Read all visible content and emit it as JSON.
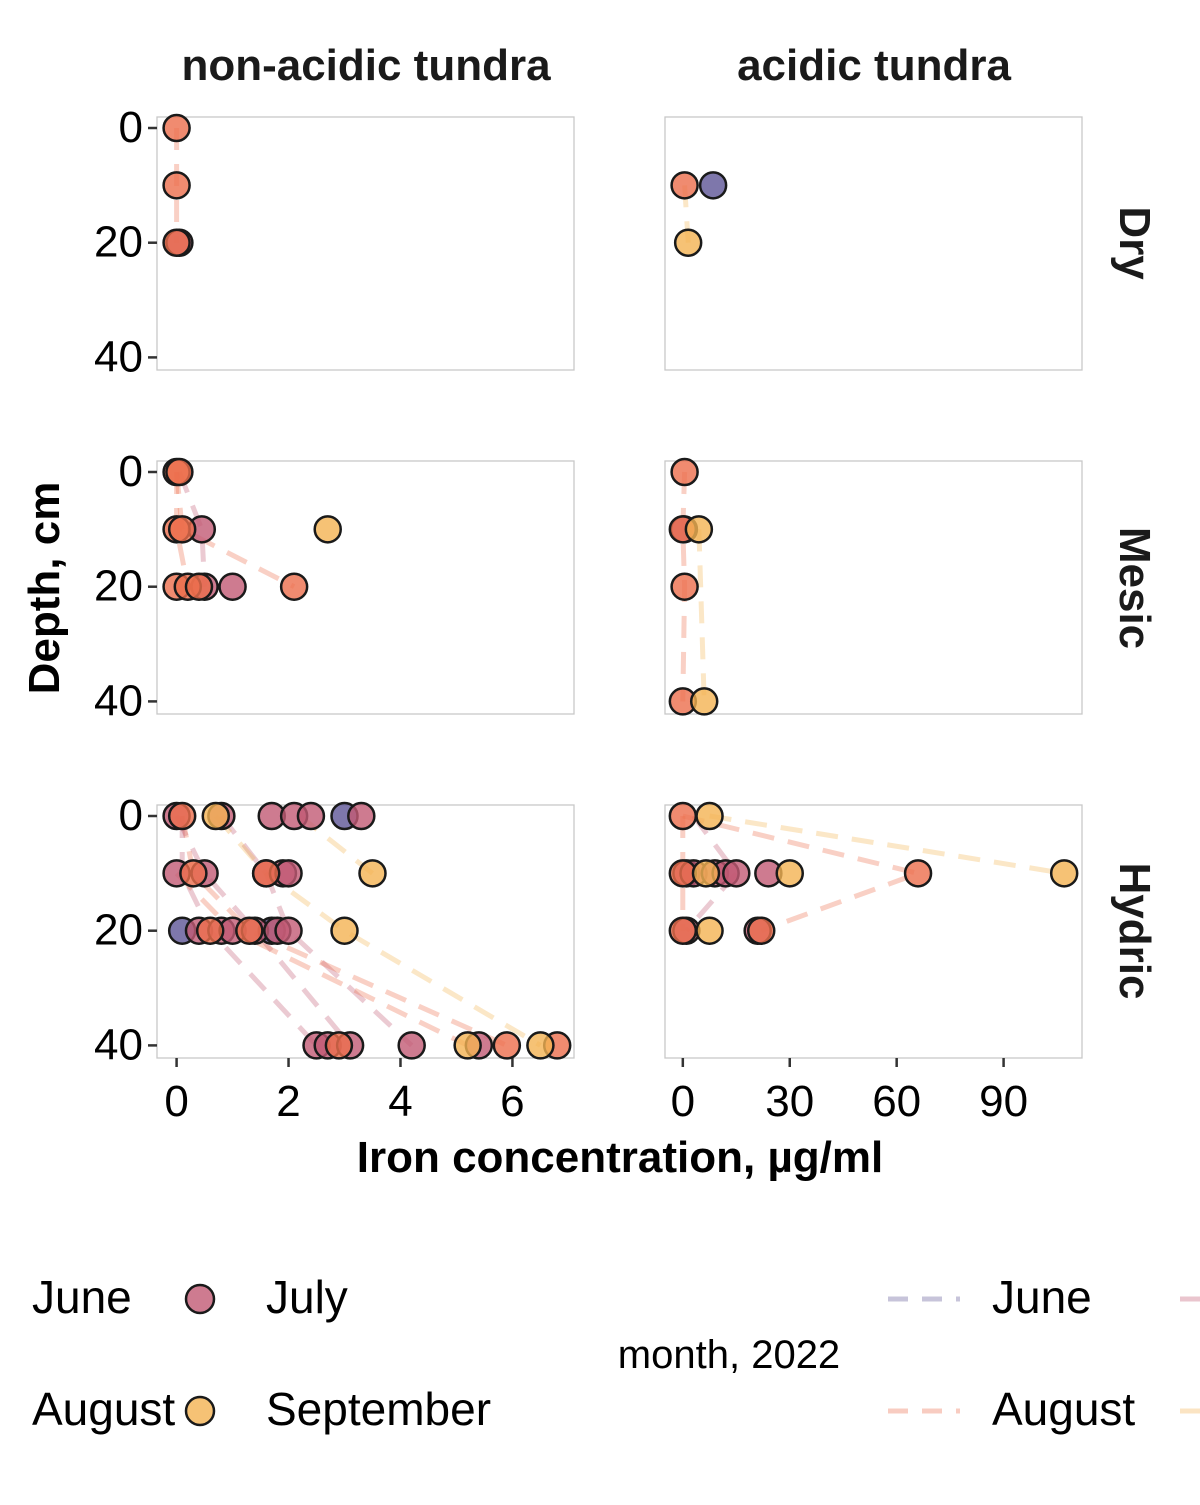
{
  "colors": {
    "June": "#5e5596",
    "July": "#c25a74",
    "August": "#ec6e4c",
    "September": "#f4b352",
    "panel_border": "#c8c8c8"
  },
  "chart_data": {
    "type": "scatter",
    "facet_columns": [
      "non-acidic tundra",
      "acidic tundra"
    ],
    "facet_rows": [
      "Dry",
      "Mesic",
      "Hydric"
    ],
    "xlabel": "Iron concentration, µg/ml",
    "ylabel": "Depth, cm",
    "y_ticks": [
      0,
      20,
      40
    ],
    "y_reversed": true,
    "ylim": [
      -4,
      40
    ],
    "x_axes": [
      {
        "column": "non-acidic tundra",
        "xlim": [
          -0.35,
          7.1
        ],
        "ticks": [
          0,
          2,
          4,
          6
        ]
      },
      {
        "column": "acidic tundra",
        "xlim": [
          -5,
          112
        ],
        "ticks": [
          0,
          30,
          60,
          90
        ]
      }
    ],
    "grid": false,
    "legend_position": "bottom",
    "legend_points": [
      "June",
      "July",
      "August",
      "September"
    ],
    "legend_lines": [
      "June",
      "July",
      "August",
      "September"
    ],
    "legend_title": "month, 2022",
    "series": [
      {
        "name": "June",
        "points": [
          {
            "col": 1,
            "row": 0,
            "x": 8.5,
            "y": 10
          },
          {
            "col": 0,
            "row": 2,
            "x": 3.0,
            "y": 0
          },
          {
            "col": 0,
            "row": 2,
            "x": 0.1,
            "y": 20
          },
          {
            "col": 0,
            "row": 2,
            "x": 1.7,
            "y": 20
          }
        ]
      },
      {
        "name": "July",
        "points": [
          {
            "col": 0,
            "row": 0,
            "x": 0.05,
            "y": 20
          },
          {
            "col": 0,
            "row": 1,
            "x": 0.45,
            "y": 10
          },
          {
            "col": 0,
            "row": 1,
            "x": 1.0,
            "y": 20
          },
          {
            "col": 0,
            "row": 1,
            "x": 0.5,
            "y": 20
          },
          {
            "col": 1,
            "row": 1,
            "x": 0.3,
            "y": 10
          },
          {
            "col": 0,
            "row": 2,
            "x": 0.0,
            "y": 0
          },
          {
            "col": 0,
            "row": 2,
            "x": 0.8,
            "y": 0
          },
          {
            "col": 0,
            "row": 2,
            "x": 1.7,
            "y": 0
          },
          {
            "col": 0,
            "row": 2,
            "x": 2.1,
            "y": 0
          },
          {
            "col": 0,
            "row": 2,
            "x": 2.4,
            "y": 0
          },
          {
            "col": 0,
            "row": 2,
            "x": 3.3,
            "y": 0
          },
          {
            "col": 0,
            "row": 2,
            "x": 0.0,
            "y": 10
          },
          {
            "col": 0,
            "row": 2,
            "x": 0.5,
            "y": 10
          },
          {
            "col": 0,
            "row": 2,
            "x": 1.6,
            "y": 10
          },
          {
            "col": 0,
            "row": 2,
            "x": 1.9,
            "y": 10
          },
          {
            "col": 0,
            "row": 2,
            "x": 2.0,
            "y": 10
          },
          {
            "col": 0,
            "row": 2,
            "x": 0.4,
            "y": 20
          },
          {
            "col": 0,
            "row": 2,
            "x": 0.8,
            "y": 20
          },
          {
            "col": 0,
            "row": 2,
            "x": 1.0,
            "y": 20
          },
          {
            "col": 0,
            "row": 2,
            "x": 1.4,
            "y": 20
          },
          {
            "col": 0,
            "row": 2,
            "x": 1.8,
            "y": 20
          },
          {
            "col": 0,
            "row": 2,
            "x": 2.0,
            "y": 20
          },
          {
            "col": 0,
            "row": 2,
            "x": 2.5,
            "y": 40
          },
          {
            "col": 0,
            "row": 2,
            "x": 2.7,
            "y": 40
          },
          {
            "col": 0,
            "row": 2,
            "x": 3.1,
            "y": 40
          },
          {
            "col": 0,
            "row": 2,
            "x": 4.2,
            "y": 40
          },
          {
            "col": 0,
            "row": 2,
            "x": 5.4,
            "y": 40
          },
          {
            "col": 1,
            "row": 2,
            "x": 1.0,
            "y": 10
          },
          {
            "col": 1,
            "row": 2,
            "x": 3.0,
            "y": 10
          },
          {
            "col": 1,
            "row": 2,
            "x": 9.0,
            "y": 10
          },
          {
            "col": 1,
            "row": 2,
            "x": 12.0,
            "y": 10
          },
          {
            "col": 1,
            "row": 2,
            "x": 15.0,
            "y": 10
          },
          {
            "col": 1,
            "row": 2,
            "x": 24.0,
            "y": 10
          },
          {
            "col": 1,
            "row": 2,
            "x": 1.0,
            "y": 20
          },
          {
            "col": 1,
            "row": 2,
            "x": 21.0,
            "y": 20
          }
        ]
      },
      {
        "name": "August",
        "points": [
          {
            "col": 0,
            "row": 0,
            "x": 0.0,
            "y": 0
          },
          {
            "col": 0,
            "row": 0,
            "x": 0.0,
            "y": 10
          },
          {
            "col": 0,
            "row": 0,
            "x": 0.0,
            "y": 20
          },
          {
            "col": 1,
            "row": 0,
            "x": 0.5,
            "y": 10
          },
          {
            "col": 0,
            "row": 1,
            "x": 0.0,
            "y": 0
          },
          {
            "col": 0,
            "row": 1,
            "x": 0.05,
            "y": 0
          },
          {
            "col": 0,
            "row": 1,
            "x": 0.0,
            "y": 10
          },
          {
            "col": 0,
            "row": 1,
            "x": 0.1,
            "y": 10
          },
          {
            "col": 0,
            "row": 1,
            "x": 0.0,
            "y": 20
          },
          {
            "col": 0,
            "row": 1,
            "x": 0.2,
            "y": 20
          },
          {
            "col": 0,
            "row": 1,
            "x": 0.4,
            "y": 20
          },
          {
            "col": 0,
            "row": 1,
            "x": 2.1,
            "y": 20
          },
          {
            "col": 1,
            "row": 1,
            "x": 0.5,
            "y": 0
          },
          {
            "col": 1,
            "row": 1,
            "x": 0.0,
            "y": 10
          },
          {
            "col": 1,
            "row": 1,
            "x": 0.5,
            "y": 20
          },
          {
            "col": 1,
            "row": 1,
            "x": 0.0,
            "y": 40
          },
          {
            "col": 0,
            "row": 2,
            "x": 0.1,
            "y": 0
          },
          {
            "col": 0,
            "row": 2,
            "x": 0.3,
            "y": 10
          },
          {
            "col": 0,
            "row": 2,
            "x": 1.6,
            "y": 10
          },
          {
            "col": 0,
            "row": 2,
            "x": 0.6,
            "y": 20
          },
          {
            "col": 0,
            "row": 2,
            "x": 1.3,
            "y": 20
          },
          {
            "col": 0,
            "row": 2,
            "x": 2.9,
            "y": 40
          },
          {
            "col": 0,
            "row": 2,
            "x": 5.9,
            "y": 40
          },
          {
            "col": 0,
            "row": 2,
            "x": 6.8,
            "y": 40
          },
          {
            "col": 1,
            "row": 2,
            "x": 0.0,
            "y": 0
          },
          {
            "col": 1,
            "row": 2,
            "x": 0.0,
            "y": 10
          },
          {
            "col": 1,
            "row": 2,
            "x": 66.0,
            "y": 10
          },
          {
            "col": 1,
            "row": 2,
            "x": 0.0,
            "y": 20
          },
          {
            "col": 1,
            "row": 2,
            "x": 22.0,
            "y": 20
          }
        ]
      },
      {
        "name": "September",
        "points": [
          {
            "col": 1,
            "row": 0,
            "x": 1.5,
            "y": 20
          },
          {
            "col": 0,
            "row": 1,
            "x": 2.7,
            "y": 10
          },
          {
            "col": 1,
            "row": 1,
            "x": 4.5,
            "y": 10
          },
          {
            "col": 1,
            "row": 1,
            "x": 6.0,
            "y": 40
          },
          {
            "col": 0,
            "row": 2,
            "x": 0.7,
            "y": 0
          },
          {
            "col": 0,
            "row": 2,
            "x": 3.5,
            "y": 10
          },
          {
            "col": 0,
            "row": 2,
            "x": 3.0,
            "y": 20
          },
          {
            "col": 0,
            "row": 2,
            "x": 5.2,
            "y": 40
          },
          {
            "col": 0,
            "row": 2,
            "x": 6.5,
            "y": 40
          },
          {
            "col": 1,
            "row": 2,
            "x": 7.5,
            "y": 0
          },
          {
            "col": 1,
            "row": 2,
            "x": 6.5,
            "y": 10
          },
          {
            "col": 1,
            "row": 2,
            "x": 30.0,
            "y": 10
          },
          {
            "col": 1,
            "row": 2,
            "x": 107.0,
            "y": 10
          },
          {
            "col": 1,
            "row": 2,
            "x": 7.5,
            "y": 20
          }
        ]
      }
    ],
    "profiles": [
      {
        "name": "August",
        "col": 0,
        "row": 0,
        "pts": [
          [
            0.0,
            0
          ],
          [
            0.0,
            10
          ],
          [
            0.0,
            20
          ]
        ]
      },
      {
        "name": "September",
        "col": 1,
        "row": 0,
        "pts": [
          [
            0.5,
            10
          ],
          [
            1.5,
            20
          ]
        ]
      },
      {
        "name": "August",
        "col": 0,
        "row": 1,
        "pts": [
          [
            0.0,
            0
          ],
          [
            0.1,
            10
          ],
          [
            2.1,
            20
          ]
        ]
      },
      {
        "name": "July",
        "col": 0,
        "row": 1,
        "pts": [
          [
            0.05,
            0
          ],
          [
            0.45,
            10
          ],
          [
            0.5,
            20
          ]
        ]
      },
      {
        "name": "August",
        "col": 0,
        "row": 1,
        "pts": [
          [
            0.0,
            0
          ],
          [
            0.0,
            10
          ],
          [
            0.2,
            20
          ]
        ]
      },
      {
        "name": "August",
        "col": 1,
        "row": 1,
        "pts": [
          [
            0.5,
            0
          ],
          [
            0.0,
            10
          ],
          [
            0.5,
            20
          ],
          [
            0.0,
            40
          ]
        ]
      },
      {
        "name": "September",
        "col": 1,
        "row": 1,
        "pts": [
          [
            4.5,
            10
          ],
          [
            6.0,
            40
          ]
        ]
      },
      {
        "name": "July",
        "col": 0,
        "row": 2,
        "pts": [
          [
            0.8,
            0
          ],
          [
            1.6,
            10
          ],
          [
            2.0,
            20
          ],
          [
            4.2,
            40
          ]
        ]
      },
      {
        "name": "July",
        "col": 0,
        "row": 2,
        "pts": [
          [
            0.0,
            0
          ],
          [
            0.5,
            10
          ],
          [
            1.4,
            20
          ],
          [
            3.1,
            40
          ]
        ]
      },
      {
        "name": "August",
        "col": 0,
        "row": 2,
        "pts": [
          [
            0.1,
            0
          ],
          [
            0.3,
            10
          ],
          [
            1.3,
            20
          ],
          [
            5.9,
            40
          ]
        ]
      },
      {
        "name": "September",
        "col": 0,
        "row": 2,
        "pts": [
          [
            0.7,
            0
          ],
          [
            1.6,
            10
          ],
          [
            3.0,
            20
          ],
          [
            6.5,
            40
          ]
        ]
      },
      {
        "name": "July",
        "col": 0,
        "row": 2,
        "pts": [
          [
            0.1,
            0
          ],
          [
            0.1,
            10
          ],
          [
            0.6,
            20
          ],
          [
            2.5,
            40
          ]
        ]
      },
      {
        "name": "August",
        "col": 0,
        "row": 2,
        "pts": [
          [
            0.0,
            10
          ],
          [
            1.0,
            20
          ],
          [
            5.2,
            40
          ]
        ]
      },
      {
        "name": "September",
        "col": 0,
        "row": 2,
        "pts": [
          [
            2.2,
            0
          ],
          [
            3.5,
            10
          ]
        ]
      },
      {
        "name": "August",
        "col": 1,
        "row": 2,
        "pts": [
          [
            0.0,
            0
          ],
          [
            66.0,
            10
          ],
          [
            22.0,
            20
          ]
        ]
      },
      {
        "name": "September",
        "col": 1,
        "row": 2,
        "pts": [
          [
            7.5,
            0
          ],
          [
            107.0,
            10
          ]
        ]
      },
      {
        "name": "July",
        "col": 1,
        "row": 2,
        "pts": [
          [
            3.0,
            0
          ],
          [
            15.0,
            10
          ],
          [
            1.0,
            20
          ]
        ]
      },
      {
        "name": "August",
        "col": 1,
        "row": 2,
        "pts": [
          [
            0.0,
            0
          ],
          [
            0.0,
            10
          ],
          [
            0.0,
            20
          ]
        ]
      }
    ]
  }
}
